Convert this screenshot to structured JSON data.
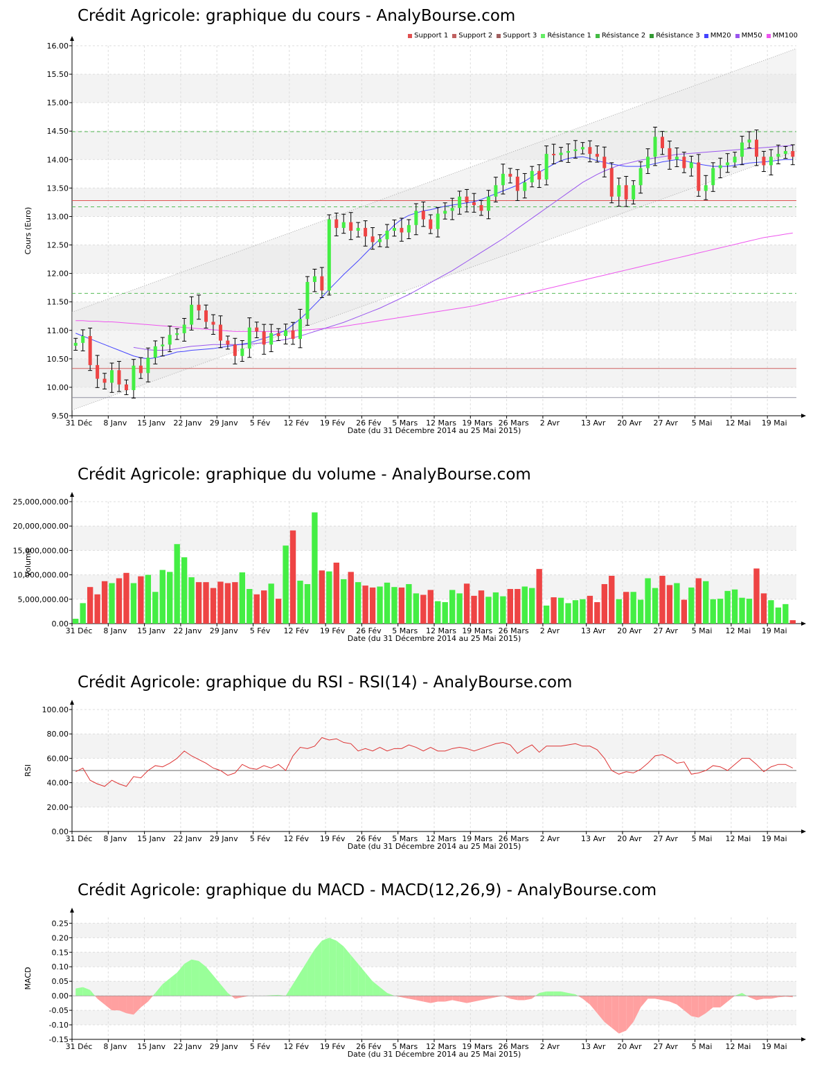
{
  "titles": {
    "price": "Crédit Agricole: graphique du cours - AnalyBourse.com",
    "volume": "Crédit Agricole: graphique du volume - AnalyBourse.com",
    "rsi": "Crédit Agricole: graphique du RSI - RSI(14) - AnalyBourse.com",
    "macd": "Crédit Agricole: graphique du MACD - MACD(12,26,9) - AnalyBourse.com"
  },
  "x_axis": {
    "label": "Date (du 31 Décembre 2014 au 25 Mai 2015)",
    "tick_labels": [
      "31 Déc",
      "8 Janv",
      "15 Janv",
      "22 Janv",
      "29 Janv",
      "5 Fév",
      "12 Fév",
      "19 Fév",
      "26 Fév",
      "5 Mars",
      "12 Mars",
      "19 Mars",
      "26 Mars",
      "2 Avr",
      "13 Avr",
      "20 Avr",
      "27 Avr",
      "5 Mai",
      "12 Mai",
      "19 Mai"
    ],
    "tick_index": [
      0,
      5,
      10,
      15,
      20,
      25,
      30,
      35,
      40,
      45,
      50,
      55,
      60,
      65,
      71,
      76,
      81,
      86,
      91,
      96
    ]
  },
  "legend": [
    {
      "label": "Support 1",
      "color": "#e05050"
    },
    {
      "label": "Support 2",
      "color": "#c06060"
    },
    {
      "label": "Support 3",
      "color": "#a06060"
    },
    {
      "label": "Résistance 1",
      "color": "#66ee66"
    },
    {
      "label": "Résistance 2",
      "color": "#44bb44"
    },
    {
      "label": "Résistance 3",
      "color": "#339933"
    },
    {
      "label": "MM20",
      "color": "#4444ff"
    },
    {
      "label": "MM50",
      "color": "#9955ee"
    },
    {
      "label": "MM100",
      "color": "#ee55ee"
    }
  ],
  "colors": {
    "up": "#44ee44",
    "down": "#ee4444",
    "macd_pos": "#99ff99",
    "macd_neg": "#ffa0a0",
    "rsi_line": "#dd3333"
  },
  "chart_data": [
    {
      "type": "candlestick",
      "ylabel": "Cours (Euro)",
      "ylim": [
        9.5,
        16.0
      ],
      "yticks": [
        "9.50",
        "10.00",
        "10.50",
        "11.00",
        "11.50",
        "12.00",
        "12.50",
        "13.00",
        "13.50",
        "14.00",
        "14.50",
        "15.00",
        "15.50",
        "16.00"
      ],
      "close": [
        10.78,
        10.9,
        10.39,
        10.15,
        10.08,
        10.3,
        10.05,
        9.95,
        10.38,
        10.25,
        10.52,
        10.72,
        10.75,
        10.92,
        10.95,
        11.1,
        11.45,
        11.35,
        11.15,
        11.1,
        10.82,
        10.75,
        10.55,
        10.68,
        11.05,
        10.98,
        10.75,
        10.95,
        10.9,
        11.0,
        10.85,
        11.2,
        11.85,
        11.95,
        11.7,
        12.95,
        12.8,
        12.9,
        12.75,
        12.8,
        12.65,
        12.55,
        12.6,
        12.75,
        12.8,
        12.72,
        12.85,
        13.1,
        12.95,
        12.78,
        13.05,
        13.1,
        13.15,
        13.35,
        13.25,
        13.2,
        13.1,
        13.35,
        13.55,
        13.75,
        13.7,
        13.45,
        13.6,
        13.8,
        13.65,
        14.1,
        14.08,
        14.12,
        14.15,
        14.18,
        14.22,
        14.1,
        14.05,
        13.85,
        13.35,
        13.55,
        13.3,
        13.55,
        13.85,
        14.05,
        14.4,
        14.2,
        14.0,
        14.05,
        13.85,
        13.95,
        13.45,
        13.55,
        13.85,
        13.9,
        13.95,
        14.05,
        14.3,
        14.35,
        14.05,
        13.9,
        14.05,
        14.1,
        14.15,
        14.05
      ],
      "volume": [
        1000000,
        4200000,
        7500000,
        6000000,
        8700000,
        8300000,
        9300000,
        10400000,
        8300000,
        9700000,
        10000000,
        6500000,
        11000000,
        10600000,
        16300000,
        13600000,
        9500000,
        8500000,
        8500000,
        7300000,
        8600000,
        8300000,
        8500000,
        10500000,
        7100000,
        6000000,
        6800000,
        8200000,
        5100000,
        16000000,
        19100000,
        8800000,
        8100000,
        22800000,
        10900000,
        10700000,
        12500000,
        9100000,
        10600000,
        8500000,
        7800000,
        7400000,
        7600000,
        8400000,
        7500000,
        7400000,
        8100000,
        6200000,
        5900000,
        6900000,
        4600000,
        4400000,
        6900000,
        6200000,
        8200000,
        5700000,
        6800000,
        5500000,
        6400000,
        5600000,
        7100000,
        7100000,
        7600000,
        7300000,
        11200000,
        3700000,
        5400000,
        5300000,
        4200000,
        4800000,
        5000000,
        5700000,
        4400000,
        8100000,
        9800000,
        5000000,
        6500000,
        6500000,
        4900000,
        9300000,
        7300000,
        9800000,
        7900000,
        8300000,
        4900000,
        7400000,
        9300000,
        8700000,
        5000000,
        5100000,
        6700000,
        7000000,
        5300000,
        5100000,
        11300000,
        6200000,
        4800000,
        3300000,
        4000000,
        700000
      ],
      "mm20": [
        10.95,
        10.9,
        10.85,
        10.8,
        10.75,
        10.7,
        10.65,
        10.6,
        10.55,
        10.52,
        10.5,
        10.52,
        10.55,
        10.58,
        10.62,
        10.63,
        10.65,
        10.66,
        10.67,
        10.68,
        10.7,
        10.72,
        10.74,
        10.76,
        10.78,
        10.82,
        10.86,
        10.9,
        10.95,
        11.0,
        11.1,
        11.2,
        11.32,
        11.45,
        11.58,
        11.72,
        11.85,
        11.98,
        12.1,
        12.22,
        12.35,
        12.48,
        12.6,
        12.72,
        12.85,
        12.95,
        13.02,
        13.06,
        13.1,
        13.12,
        13.15,
        13.18,
        13.2,
        13.22,
        13.24,
        13.26,
        13.3,
        13.35,
        13.4,
        13.45,
        13.5,
        13.55,
        13.62,
        13.7,
        13.78,
        13.85,
        13.92,
        13.98,
        14.02,
        14.04,
        14.05,
        14.02,
        13.98,
        13.95,
        13.92,
        13.9,
        13.88,
        13.88,
        13.88,
        13.9,
        13.93,
        13.96,
        13.98,
        14.0,
        13.98,
        13.95,
        13.92,
        13.9,
        13.88,
        13.88,
        13.88,
        13.9,
        13.92,
        13.94,
        13.95,
        13.96,
        13.97,
        13.99,
        14.0,
        14.0
      ],
      "mm50": [
        null,
        null,
        null,
        null,
        null,
        null,
        null,
        null,
        10.7,
        10.68,
        10.66,
        10.65,
        10.65,
        10.66,
        10.68,
        10.7,
        10.72,
        10.73,
        10.74,
        10.75,
        10.75,
        10.75,
        10.75,
        10.75,
        10.76,
        10.77,
        10.78,
        10.8,
        10.82,
        10.84,
        10.87,
        10.9,
        10.94,
        10.98,
        11.02,
        11.06,
        11.1,
        11.14,
        11.19,
        11.24,
        11.29,
        11.34,
        11.39,
        11.45,
        11.51,
        11.57,
        11.63,
        11.7,
        11.77,
        11.84,
        11.91,
        11.98,
        12.05,
        12.13,
        12.21,
        12.29,
        12.37,
        12.45,
        12.53,
        12.61,
        12.7,
        12.79,
        12.88,
        12.97,
        13.06,
        13.15,
        13.24,
        13.33,
        13.42,
        13.51,
        13.6,
        13.67,
        13.74,
        13.8,
        13.85,
        13.9,
        13.93,
        13.96,
        13.99,
        14.01,
        14.03,
        14.05,
        14.07,
        14.09,
        14.1,
        14.11,
        14.12,
        14.13,
        14.14,
        14.15,
        14.16,
        14.17,
        14.18,
        14.19,
        14.2,
        14.21,
        14.22,
        14.23,
        14.24,
        14.25
      ],
      "mm100": [
        11.17,
        11.17,
        11.16,
        11.16,
        11.15,
        11.15,
        11.14,
        11.13,
        11.12,
        11.11,
        11.1,
        11.09,
        11.08,
        11.07,
        11.06,
        11.05,
        11.04,
        11.03,
        11.02,
        11.01,
        11.0,
        10.99,
        10.98,
        10.98,
        10.98,
        10.98,
        10.98,
        10.98,
        10.98,
        10.98,
        10.99,
        11.0,
        11.01,
        11.02,
        11.03,
        11.04,
        11.05,
        11.07,
        11.09,
        11.11,
        11.13,
        11.15,
        11.17,
        11.19,
        11.21,
        11.23,
        11.25,
        11.27,
        11.29,
        11.31,
        11.33,
        11.35,
        11.37,
        11.39,
        11.41,
        11.43,
        11.46,
        11.49,
        11.52,
        11.55,
        11.58,
        11.61,
        11.64,
        11.67,
        11.7,
        11.73,
        11.76,
        11.79,
        11.82,
        11.85,
        11.88,
        11.91,
        11.94,
        11.97,
        12.0,
        12.03,
        12.06,
        12.09,
        12.12,
        12.15,
        12.18,
        12.21,
        12.24,
        12.27,
        12.3,
        12.33,
        12.36,
        12.39,
        12.42,
        12.45,
        12.48,
        12.51,
        12.54,
        12.57,
        12.6,
        12.63,
        12.65,
        12.67,
        12.69,
        12.71
      ],
      "support_lines": [
        13.28,
        10.33,
        9.82
      ],
      "resistance_lines": [
        14.49,
        13.17,
        11.65
      ]
    },
    {
      "type": "bar",
      "ylabel": "Volume",
      "ylim": [
        0,
        25000000
      ],
      "yticks": [
        "0.00",
        "5,000,000.00",
        "10,000,000.00",
        "15,000,000.00",
        "20,000,000.00",
        "25,000,000.00"
      ]
    },
    {
      "type": "line",
      "ylabel": "RSI",
      "ylim": [
        0,
        100
      ],
      "yticks": [
        "0.00",
        "20.00",
        "40.00",
        "60.00",
        "80.00",
        "100.00"
      ],
      "reference": 50,
      "values": [
        49,
        52,
        42,
        39,
        37,
        42,
        39,
        37,
        45,
        44,
        50,
        54,
        53,
        56,
        60,
        66,
        62,
        59,
        56,
        52,
        50,
        46,
        48,
        55,
        52,
        51,
        54,
        52,
        55,
        50,
        62,
        69,
        68,
        70,
        77,
        75,
        76,
        73,
        72,
        66,
        68,
        66,
        69,
        66,
        68,
        68,
        71,
        69,
        66,
        69,
        66,
        66,
        68,
        69,
        68,
        66,
        68,
        70,
        72,
        73,
        71,
        64,
        68,
        71,
        65,
        70,
        70,
        70,
        71,
        72,
        70,
        70,
        67,
        60,
        50,
        47,
        49,
        48,
        51,
        56,
        62,
        63,
        60,
        56,
        57,
        47,
        48,
        50,
        54,
        53,
        50,
        55,
        60,
        60,
        55,
        49,
        53,
        55,
        55,
        52
      ]
    },
    {
      "type": "area",
      "ylabel": "MACD",
      "ylim": [
        -0.15,
        0.27
      ],
      "yticks": [
        "-0.15",
        "-0.10",
        "-0.05",
        "0.00",
        "0.05",
        "0.10",
        "0.15",
        "0.20",
        "0.25"
      ],
      "values": [
        0.025,
        0.03,
        0.02,
        -0.01,
        -0.03,
        -0.05,
        -0.05,
        -0.06,
        -0.065,
        -0.04,
        -0.02,
        0.01,
        0.04,
        0.06,
        0.08,
        0.11,
        0.125,
        0.12,
        0.1,
        0.07,
        0.04,
        0.01,
        -0.01,
        -0.005,
        0.0,
        0.0,
        0.0,
        0.002,
        0.003,
        0.0,
        0.04,
        0.08,
        0.12,
        0.16,
        0.19,
        0.2,
        0.19,
        0.17,
        0.14,
        0.11,
        0.08,
        0.05,
        0.03,
        0.01,
        0.0,
        -0.005,
        -0.01,
        -0.015,
        -0.02,
        -0.025,
        -0.02,
        -0.02,
        -0.015,
        -0.02,
        -0.025,
        -0.02,
        -0.015,
        -0.01,
        -0.005,
        0.0,
        -0.01,
        -0.015,
        -0.015,
        -0.01,
        0.01,
        0.015,
        0.015,
        0.015,
        0.01,
        0.005,
        -0.01,
        -0.03,
        -0.06,
        -0.09,
        -0.11,
        -0.13,
        -0.12,
        -0.09,
        -0.04,
        -0.01,
        -0.01,
        -0.015,
        -0.02,
        -0.03,
        -0.05,
        -0.07,
        -0.075,
        -0.06,
        -0.04,
        -0.04,
        -0.02,
        0.0,
        0.01,
        -0.005,
        -0.015,
        -0.01,
        -0.01,
        -0.005,
        -0.003,
        -0.005
      ]
    }
  ]
}
